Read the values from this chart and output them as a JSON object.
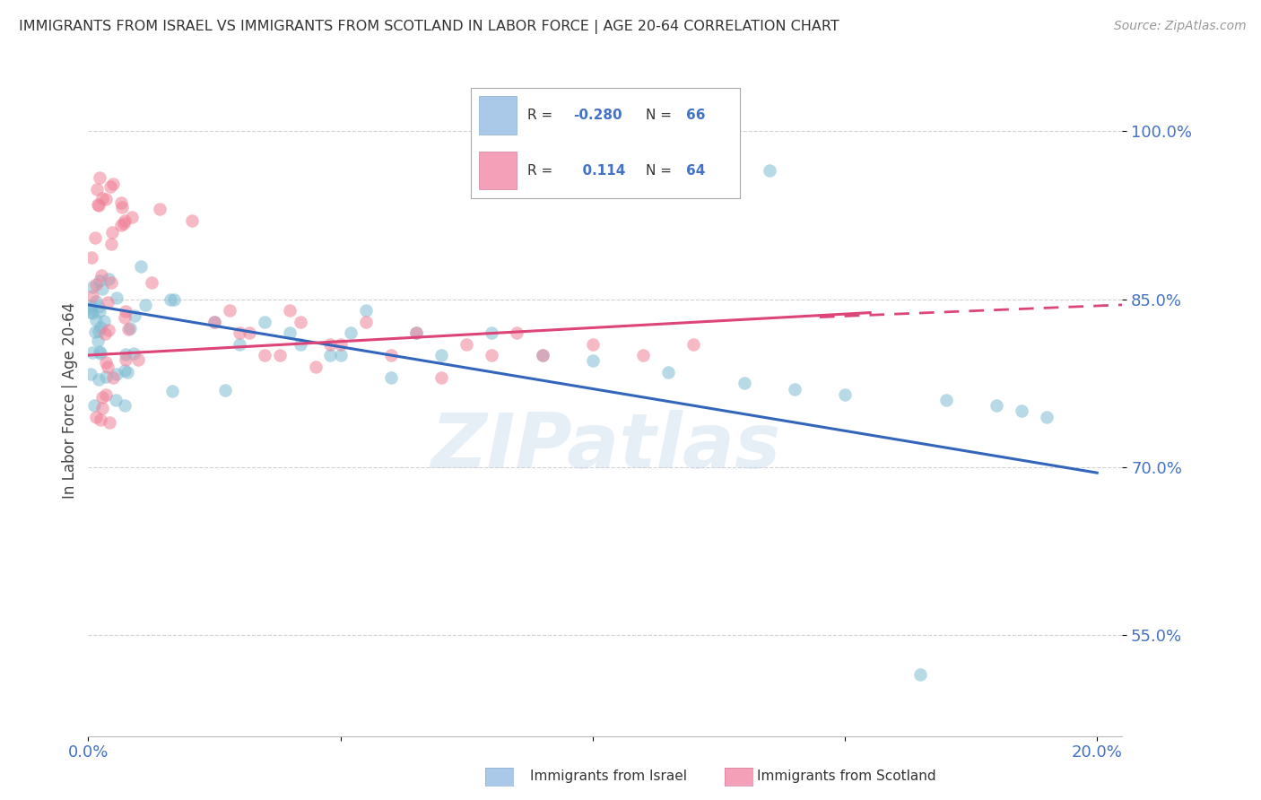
{
  "title": "IMMIGRANTS FROM ISRAEL VS IMMIGRANTS FROM SCOTLAND IN LABOR FORCE | AGE 20-64 CORRELATION CHART",
  "source": "Source: ZipAtlas.com",
  "ylabel": "In Labor Force | Age 20-64",
  "watermark": "ZIPatlas",
  "R_israel": "-0.280",
  "N_israel": "66",
  "R_scotland": "0.114",
  "N_scotland": "64",
  "label_israel": "Immigrants from Israel",
  "label_scotland": "Immigrants from Scotland",
  "xlim": [
    0.0,
    0.205
  ],
  "ylim": [
    0.46,
    1.06
  ],
  "yticks": [
    0.55,
    0.7,
    0.85,
    1.0
  ],
  "ytick_labels": [
    "55.0%",
    "70.0%",
    "85.0%",
    "100.0%"
  ],
  "xtick_positions": [
    0.0,
    0.05,
    0.1,
    0.15,
    0.2
  ],
  "xtick_labels": [
    "0.0%",
    "",
    "",
    "",
    "20.0%"
  ],
  "israel_line": [
    0.0,
    0.845,
    0.2,
    0.695
  ],
  "scotland_line_solid": [
    0.0,
    0.8,
    0.155,
    0.838
  ],
  "scotland_line_dashed": [
    0.145,
    0.834,
    0.205,
    0.845
  ],
  "background_color": "#ffffff",
  "grid_color": "#cccccc",
  "title_color": "#333333",
  "tick_color": "#4472c4",
  "israel_dot_color": "#7fbcd2",
  "scotland_dot_color": "#f08098",
  "israel_line_color": "#3366bb",
  "scotland_line_color": "#dd4477",
  "legend_israel_box": "#aac8e8",
  "legend_scotland_box": "#f4a0b8"
}
